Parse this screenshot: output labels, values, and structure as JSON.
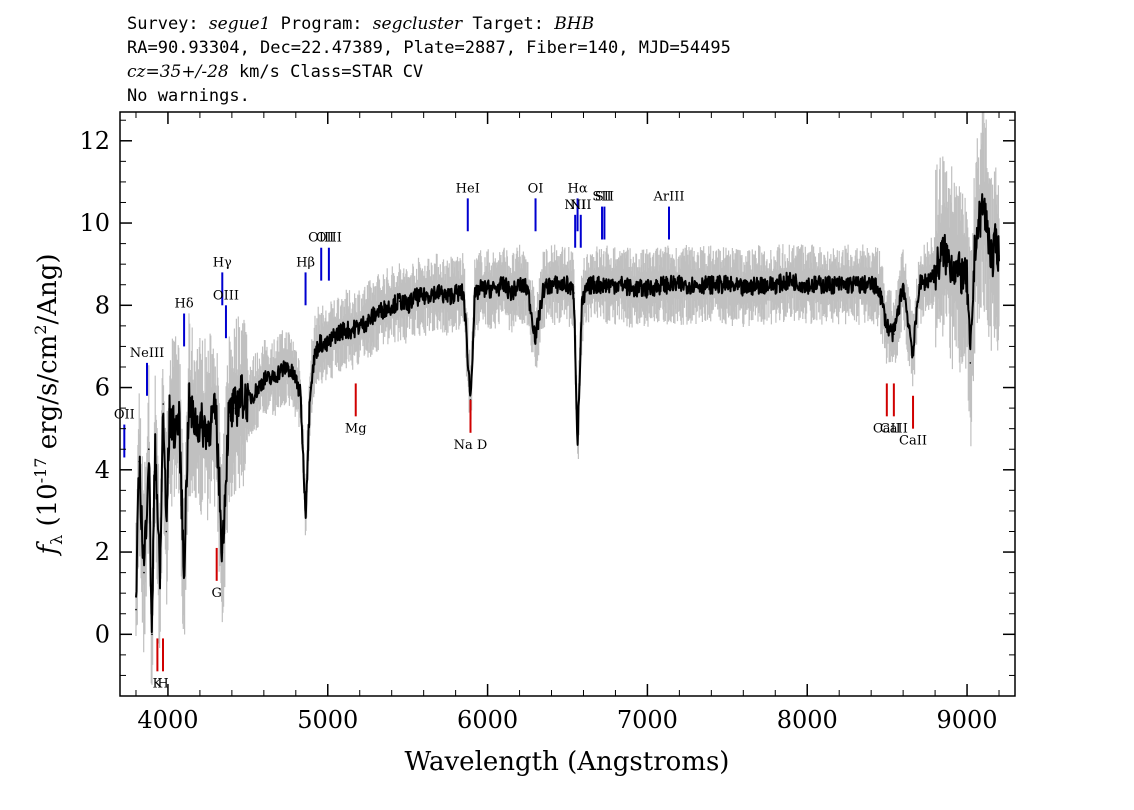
{
  "header": {
    "survey_label": "Survey:",
    "survey": "segue1",
    "program_label": "Program:",
    "program": "segcluster",
    "target_label": "Target:",
    "target": "BHB",
    "line2": "RA=90.93304, Dec=22.47389, Plate=2887, Fiber=140, MJD=54495",
    "cz": "cz=35+/-28",
    "cz_rest": " km/s Class=STAR CV",
    "warnings": "No warnings."
  },
  "chart_data": {
    "type": "line",
    "xlabel": "Wavelength (Angstroms)",
    "ylabel_prefix": "f",
    "ylabel_sub": "λ",
    "ylabel_mid": " (10",
    "ylabel_exp": "-17",
    "ylabel_unit": " erg/s/cm",
    "ylabel_unit_exp": "2",
    "ylabel_tail": "/Ang)",
    "xlim": [
      3700,
      9300
    ],
    "ylim": [
      -1.5,
      12.7
    ],
    "xticks": [
      4000,
      5000,
      6000,
      7000,
      8000,
      9000
    ],
    "yticks": [
      0,
      2,
      4,
      6,
      8,
      10,
      12
    ],
    "series": [
      {
        "color": "#000000",
        "x": [
          3800,
          3820,
          3850,
          3880,
          3900,
          3920,
          3950,
          3970,
          3990,
          4010,
          4040,
          4070,
          4100,
          4130,
          4160,
          4200,
          4250,
          4300,
          4340,
          4380,
          4420,
          4460,
          4500,
          4550,
          4600,
          4650,
          4700,
          4750,
          4800,
          4830,
          4861,
          4890,
          4920,
          4950,
          4990,
          5050,
          5100,
          5150,
          5200,
          5250,
          5300,
          5350,
          5400,
          5450,
          5500,
          5550,
          5600,
          5650,
          5700,
          5750,
          5800,
          5850,
          5893,
          5920,
          5950,
          6000,
          6050,
          6100,
          6150,
          6200,
          6250,
          6300,
          6350,
          6400,
          6450,
          6500,
          6540,
          6563,
          6590,
          6620,
          6650,
          6700,
          6750,
          6800,
          6850,
          6900,
          6950,
          7000,
          7100,
          7200,
          7300,
          7400,
          7500,
          7600,
          7700,
          7800,
          7900,
          8000,
          8100,
          8200,
          8300,
          8400,
          8450,
          8498,
          8542,
          8600,
          8662,
          8700,
          8750,
          8800,
          8850,
          8900,
          8950,
          9000,
          9020,
          9050,
          9100,
          9130,
          9160,
          9180,
          9200
        ],
        "y": [
          0.6,
          4.2,
          1.5,
          4.5,
          0.0,
          4.8,
          1.2,
          5.6,
          2.5,
          5.3,
          5.0,
          5.2,
          1.5,
          5.6,
          5.2,
          5.1,
          5.0,
          5.4,
          2.0,
          5.3,
          5.5,
          5.8,
          5.7,
          5.9,
          6.2,
          6.2,
          6.4,
          6.5,
          6.2,
          5.8,
          2.9,
          6.0,
          6.8,
          7.1,
          7.0,
          7.3,
          7.4,
          7.4,
          7.5,
          7.6,
          7.8,
          7.9,
          8.0,
          8.1,
          8.0,
          8.2,
          8.2,
          8.3,
          8.3,
          8.2,
          8.3,
          8.3,
          5.7,
          8.2,
          8.4,
          8.4,
          8.4,
          8.5,
          8.3,
          8.5,
          8.4,
          7.2,
          8.4,
          8.5,
          8.5,
          8.5,
          8.3,
          4.6,
          8.0,
          8.4,
          8.5,
          8.5,
          8.5,
          8.5,
          8.5,
          8.4,
          8.4,
          8.4,
          8.5,
          8.5,
          8.5,
          8.5,
          8.5,
          8.4,
          8.5,
          8.5,
          8.6,
          8.5,
          8.5,
          8.5,
          8.5,
          8.5,
          8.4,
          7.5,
          7.3,
          8.5,
          6.8,
          8.5,
          8.6,
          8.8,
          9.3,
          9.0,
          8.8,
          8.6,
          6.6,
          9.5,
          10.5,
          9.8,
          9.0,
          9.6,
          9.2
        ]
      }
    ],
    "lines_emission": [
      {
        "label": "OII",
        "x": 3727,
        "y": 4.3
      },
      {
        "label": "NeIII",
        "x": 3869,
        "y": 5.8
      },
      {
        "label": "Hδ",
        "x": 4101,
        "y": 7.0
      },
      {
        "label": "Hγ",
        "x": 4340,
        "y": 8.0
      },
      {
        "label": "OIII",
        "x": 4363,
        "y": 7.2
      },
      {
        "label": "Hβ",
        "x": 4861,
        "y": 8.0
      },
      {
        "label": "OIII",
        "x": 4959,
        "y": 8.6
      },
      {
        "label": "OIII",
        "x": 5007,
        "y": 8.6
      },
      {
        "label": "HeI",
        "x": 5876,
        "y": 9.8
      },
      {
        "label": "OI",
        "x": 6300,
        "y": 9.8
      },
      {
        "label": "NII",
        "x": 6548,
        "y": 9.4
      },
      {
        "label": "Hα",
        "x": 6563,
        "y": 9.8
      },
      {
        "label": "NII",
        "x": 6583,
        "y": 9.4
      },
      {
        "label": "SII",
        "x": 6716,
        "y": 9.6
      },
      {
        "label": "SII",
        "x": 6731,
        "y": 9.6
      },
      {
        "label": "ArIII",
        "x": 7135,
        "y": 9.6
      }
    ],
    "lines_absorption": [
      {
        "label": "K",
        "x": 3934,
        "y": -0.9
      },
      {
        "label": "H",
        "x": 3969,
        "y": -0.9
      },
      {
        "label": "G",
        "x": 4305,
        "y": 1.3
      },
      {
        "label": "Mg",
        "x": 5175,
        "y": 5.3
      },
      {
        "label": "Na D",
        "x": 5893,
        "y": 4.9
      },
      {
        "label": "CaII",
        "x": 8498,
        "y": 5.3
      },
      {
        "label": "CaII",
        "x": 8542,
        "y": 5.3
      },
      {
        "label": "CaII",
        "x": 8662,
        "y": 5.0
      }
    ],
    "colors": {
      "spectrum": "#000000",
      "error": "#c0c0c0",
      "emission": "#0000d0",
      "absorption": "#d00000"
    }
  }
}
